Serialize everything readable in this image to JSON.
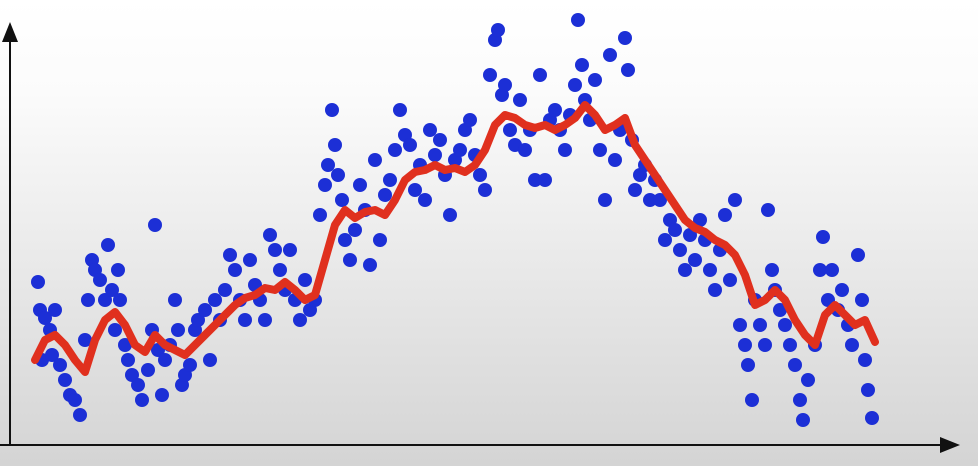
{
  "chart_data": {
    "type": "scatter",
    "xlim": [
      10,
      955
    ],
    "ylim": [
      0,
      425
    ],
    "series": [
      {
        "color": "#1c2fd6",
        "x": [
          38,
          40,
          45,
          50,
          55,
          42,
          52,
          60,
          65,
          70,
          75,
          80,
          85,
          88,
          92,
          95,
          100,
          105,
          108,
          112,
          115,
          118,
          120,
          125,
          128,
          132,
          138,
          142,
          148,
          152,
          155,
          158,
          162,
          165,
          170,
          175,
          178,
          182,
          185,
          190,
          195,
          198,
          205,
          210,
          215,
          220,
          225,
          230,
          235,
          240,
          245,
          250,
          255,
          260,
          265,
          270,
          275,
          280,
          285,
          290,
          295,
          300,
          305,
          310,
          315,
          320,
          325,
          328,
          332,
          335,
          338,
          342,
          345,
          350,
          355,
          360,
          365,
          370,
          375,
          380,
          385,
          390,
          395,
          400,
          405,
          410,
          415,
          420,
          425,
          430,
          435,
          440,
          445,
          450,
          455,
          460,
          465,
          470,
          475,
          480,
          485,
          490,
          495,
          498,
          502,
          505,
          510,
          515,
          520,
          525,
          530,
          535,
          540,
          545,
          550,
          555,
          560,
          565,
          570,
          575,
          578,
          582,
          585,
          590,
          595,
          600,
          605,
          610,
          615,
          620,
          625,
          628,
          632,
          635,
          640,
          645,
          650,
          655,
          660,
          665,
          670,
          675,
          680,
          685,
          690,
          695,
          700,
          705,
          710,
          715,
          720,
          725,
          730,
          735,
          740,
          745,
          748,
          752,
          755,
          760,
          765,
          768,
          772,
          775,
          780,
          785,
          790,
          795,
          800,
          803,
          808,
          815,
          820,
          823,
          828,
          832,
          838,
          842,
          848,
          852,
          858,
          862,
          865,
          868,
          872
        ],
        "values": [
          163,
          135,
          127,
          115,
          135,
          85,
          90,
          80,
          65,
          50,
          45,
          30,
          105,
          145,
          185,
          175,
          165,
          145,
          200,
          155,
          115,
          175,
          145,
          100,
          85,
          70,
          60,
          45,
          75,
          115,
          220,
          95,
          50,
          85,
          100,
          145,
          115,
          60,
          70,
          80,
          115,
          125,
          135,
          85,
          145,
          125,
          155,
          190,
          175,
          145,
          125,
          185,
          160,
          145,
          125,
          210,
          195,
          175,
          155,
          195,
          145,
          125,
          165,
          135,
          145,
          230,
          260,
          280,
          335,
          300,
          270,
          245,
          205,
          185,
          215,
          260,
          235,
          180,
          285,
          205,
          250,
          265,
          295,
          335,
          310,
          300,
          255,
          280,
          245,
          315,
          290,
          305,
          270,
          230,
          285,
          295,
          315,
          325,
          290,
          270,
          255,
          370,
          405,
          415,
          350,
          360,
          315,
          300,
          345,
          295,
          315,
          265,
          370,
          265,
          325,
          335,
          315,
          295,
          330,
          360,
          425,
          380,
          345,
          325,
          365,
          295,
          245,
          390,
          285,
          315,
          407,
          375,
          305,
          255,
          270,
          280,
          245,
          265,
          245,
          205,
          225,
          215,
          195,
          175,
          210,
          185,
          225,
          205,
          175,
          155,
          195,
          230,
          165,
          245,
          120,
          100,
          80,
          45,
          145,
          120,
          100,
          235,
          175,
          155,
          135,
          120,
          100,
          80,
          45,
          25,
          65,
          100,
          175,
          208,
          145,
          175,
          135,
          155,
          120,
          100,
          190,
          145,
          85,
          55,
          27
        ]
      },
      {
        "color": "#e0301e",
        "line": true,
        "x": [
          35,
          45,
          55,
          65,
          75,
          85,
          95,
          105,
          115,
          125,
          135,
          145,
          155,
          165,
          175,
          185,
          195,
          205,
          215,
          225,
          235,
          245,
          255,
          265,
          275,
          285,
          295,
          305,
          315,
          325,
          335,
          345,
          355,
          365,
          375,
          385,
          395,
          405,
          415,
          425,
          435,
          445,
          455,
          465,
          475,
          485,
          495,
          505,
          515,
          525,
          535,
          545,
          555,
          565,
          575,
          585,
          595,
          605,
          615,
          625,
          635,
          645,
          655,
          665,
          675,
          685,
          695,
          705,
          715,
          725,
          735,
          745,
          755,
          765,
          775,
          785,
          795,
          805,
          815,
          825,
          835,
          845,
          855,
          865,
          875
        ],
        "values": [
          85,
          105,
          110,
          100,
          85,
          73,
          105,
          125,
          133,
          120,
          100,
          93,
          110,
          100,
          95,
          90,
          100,
          110,
          120,
          130,
          140,
          147,
          150,
          157,
          155,
          163,
          155,
          145,
          150,
          185,
          220,
          235,
          227,
          233,
          235,
          230,
          245,
          265,
          273,
          275,
          280,
          275,
          277,
          273,
          280,
          295,
          320,
          330,
          327,
          320,
          317,
          320,
          315,
          320,
          327,
          340,
          330,
          315,
          320,
          327,
          300,
          285,
          270,
          255,
          240,
          225,
          217,
          213,
          205,
          200,
          190,
          170,
          140,
          145,
          155,
          145,
          125,
          110,
          100,
          130,
          140,
          130,
          120,
          125,
          103
        ]
      }
    ]
  }
}
